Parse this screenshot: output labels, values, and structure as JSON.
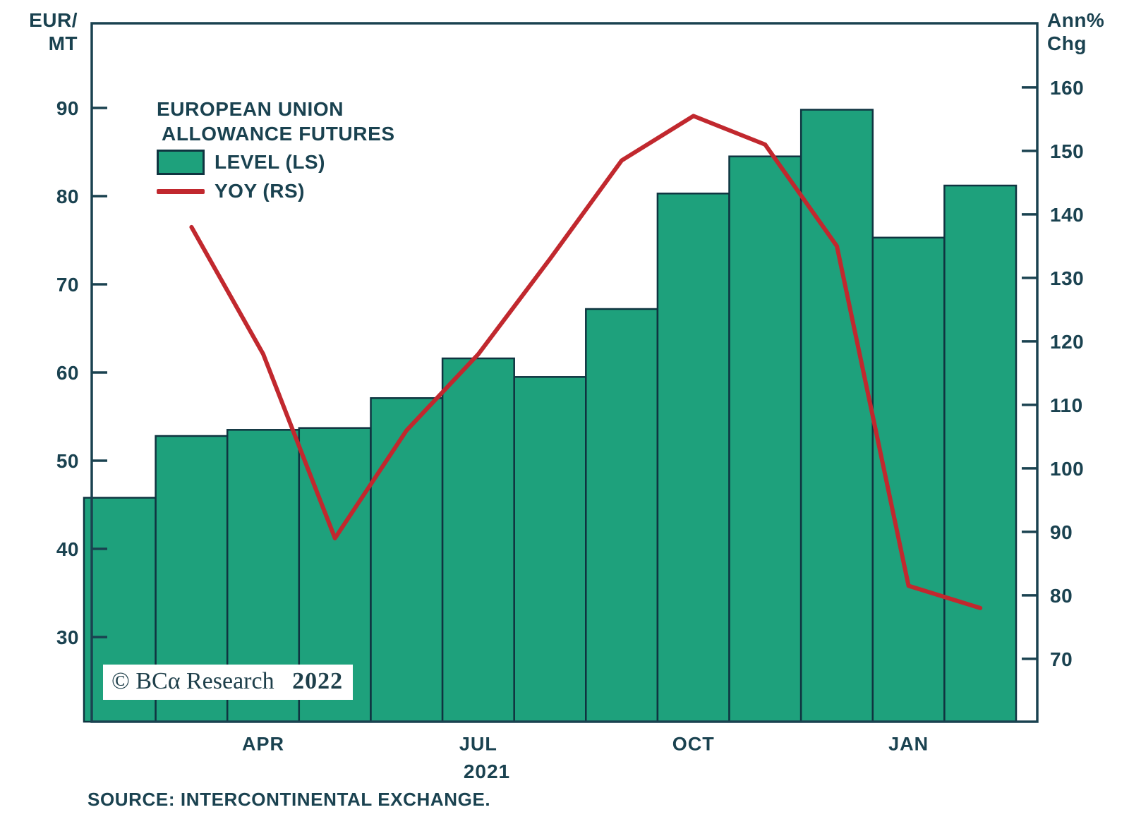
{
  "figure": {
    "watermark_text": "© BCα Research",
    "watermark_year": "2022",
    "source": "SOURCE: INTERCONTINENTAL EXCHANGE."
  },
  "colors": {
    "bar_fill": "#1EA17C",
    "bar_stroke": "#0F3440",
    "line": "#C1282E",
    "axis": "#1A4250",
    "text": "#1A4250",
    "background": "#FFFFFF"
  },
  "left_axis": {
    "unit_line1": "EUR/",
    "unit_line2": "MT",
    "ticks": [
      90,
      80,
      70,
      60,
      50,
      40,
      30
    ]
  },
  "right_axis": {
    "unit_line1": "Ann%",
    "unit_line2": "Chg",
    "ticks": [
      160,
      150,
      140,
      130,
      120,
      110,
      100,
      90,
      80,
      70
    ]
  },
  "x_axis": {
    "tick_labels": [
      {
        "label": "APR",
        "month_index": 2
      },
      {
        "label": "JUL",
        "month_index": 5
      },
      {
        "label": "OCT",
        "month_index": 8
      },
      {
        "label": "JAN",
        "month_index": 11
      }
    ],
    "year_label": "2021"
  },
  "legend": {
    "title_line1": "EUROPEAN UNION",
    "title_line2": "ALLOWANCE FUTURES",
    "items": [
      {
        "label": "LEVEL (LS)",
        "type": "bar"
      },
      {
        "label": "YOY (RS)",
        "type": "line"
      }
    ]
  },
  "chart_data": {
    "type": "combo",
    "title": "EUROPEAN UNION ALLOWANCE FUTURES",
    "x": [
      "Feb 2021",
      "Mar 2021",
      "Apr 2021",
      "May 2021",
      "Jun 2021",
      "Jul 2021",
      "Aug 2021",
      "Sep 2021",
      "Oct 2021",
      "Nov 2021",
      "Dec 2021",
      "Jan 2022",
      "Feb 2022"
    ],
    "series": [
      {
        "name": "LEVEL (LS)",
        "type": "bar",
        "axis": "left",
        "axis_unit": "EUR/MT",
        "values": [
          45.8,
          52.8,
          53.5,
          53.7,
          57.1,
          61.6,
          59.5,
          67.2,
          80.3,
          84.5,
          89.8,
          75.3,
          81.2
        ]
      },
      {
        "name": "YOY (RS)",
        "type": "line",
        "axis": "right",
        "axis_unit": "Ann% Chg",
        "values": [
          null,
          138,
          118,
          89,
          106,
          118,
          133,
          148.5,
          155.5,
          151,
          135,
          81.5,
          78
        ]
      }
    ],
    "axes": {
      "left": {
        "label": "EUR/MT",
        "ticks": [
          30,
          40,
          50,
          60,
          70,
          80,
          90
        ],
        "range": [
          20.4,
          99.6
        ]
      },
      "right": {
        "label": "Ann% Chg",
        "ticks": [
          70,
          80,
          90,
          100,
          110,
          120,
          130,
          140,
          150,
          160
        ],
        "range": [
          60.1,
          170.1
        ]
      }
    },
    "grid": false,
    "legend_position": "top-left",
    "x_tick_labels_shown": [
      "APR",
      "JUL",
      "OCT",
      "JAN"
    ],
    "x_year_label": "2021"
  }
}
